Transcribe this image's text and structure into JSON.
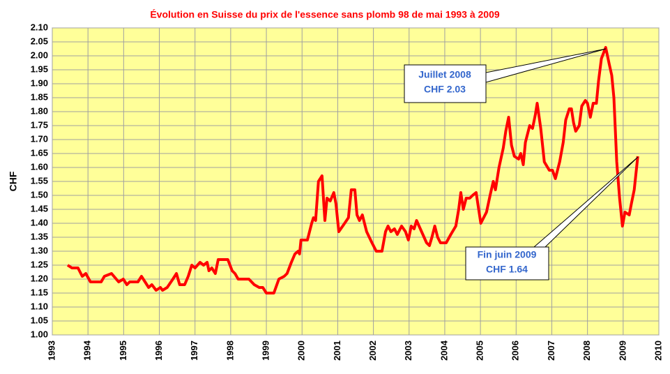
{
  "chart_data": {
    "type": "line",
    "title": "Évolution en Suisse du prix de l'essence sans plomb 98 de mai 1993 à 2009",
    "y_label": "CHF",
    "color": "#ff0000",
    "grid": true,
    "xlim": [
      1993,
      2010
    ],
    "xticks": [
      1993,
      1994,
      1995,
      1996,
      1997,
      1998,
      1999,
      2000,
      2001,
      2002,
      2003,
      2004,
      2005,
      2006,
      2007,
      2008,
      2009,
      2010
    ],
    "ylim": [
      1.0,
      2.1
    ],
    "yticks": [
      {
        "value": 1.0,
        "label": "1.00"
      },
      {
        "value": 1.05,
        "label": "1.05"
      },
      {
        "value": 1.1,
        "label": "1.10"
      },
      {
        "value": 1.15,
        "label": "1.15"
      },
      {
        "value": 1.2,
        "label": "1.20"
      },
      {
        "value": 1.25,
        "label": "1.25"
      },
      {
        "value": 1.3,
        "label": "1.30"
      },
      {
        "value": 1.35,
        "label": "1.35"
      },
      {
        "value": 1.4,
        "label": "1.40"
      },
      {
        "value": 1.45,
        "label": "1.45"
      },
      {
        "value": 1.5,
        "label": "1.50"
      },
      {
        "value": 1.55,
        "label": "1.55"
      },
      {
        "value": 1.6,
        "label": "1.60"
      },
      {
        "value": 1.65,
        "label": "1.65"
      },
      {
        "value": 1.7,
        "label": "1.70"
      },
      {
        "value": 1.75,
        "label": "1.75"
      },
      {
        "value": 1.8,
        "label": "1.80"
      },
      {
        "value": 1.85,
        "label": "1.85"
      },
      {
        "value": 1.9,
        "label": "1.90"
      },
      {
        "value": 1.95,
        "label": "1.95"
      },
      {
        "value": 2.0,
        "label": "2.00"
      },
      {
        "value": 2.05,
        "label": "2.05"
      },
      {
        "value": 2.1,
        "label": "2.10"
      }
    ],
    "x": [
      1993.43,
      1993.55,
      1993.72,
      1993.84,
      1993.94,
      1994.07,
      1994.37,
      1994.46,
      1994.66,
      1994.86,
      1994.99,
      1995.09,
      1995.17,
      1995.4,
      1995.5,
      1995.7,
      1995.79,
      1995.91,
      1996.03,
      1996.09,
      1996.22,
      1996.38,
      1996.48,
      1996.57,
      1996.71,
      1996.81,
      1996.91,
      1997.0,
      1997.14,
      1997.24,
      1997.34,
      1997.39,
      1997.47,
      1997.57,
      1997.65,
      1997.92,
      1998.04,
      1998.12,
      1998.21,
      1998.51,
      1998.66,
      1998.8,
      1998.9,
      1999.0,
      1999.21,
      1999.35,
      1999.5,
      1999.58,
      1999.7,
      1999.8,
      1999.89,
      1999.93,
      1999.97,
      2000.15,
      2000.27,
      2000.32,
      2000.38,
      2000.46,
      2000.56,
      2000.64,
      2000.7,
      2000.79,
      2000.89,
      2000.95,
      2001.03,
      2001.14,
      2001.3,
      2001.38,
      2001.48,
      2001.54,
      2001.61,
      2001.69,
      2001.81,
      2001.96,
      2002.08,
      2002.24,
      2002.34,
      2002.41,
      2002.49,
      2002.59,
      2002.67,
      2002.79,
      2002.9,
      2002.98,
      2003.06,
      2003.14,
      2003.21,
      2003.35,
      2003.49,
      2003.57,
      2003.64,
      2003.72,
      2003.8,
      2003.88,
      2004.04,
      2004.17,
      2004.31,
      2004.39,
      2004.45,
      2004.52,
      2004.6,
      2004.7,
      2004.78,
      2004.88,
      2004.95,
      2005.01,
      2005.17,
      2005.27,
      2005.36,
      2005.42,
      2005.52,
      2005.64,
      2005.71,
      2005.79,
      2005.87,
      2005.95,
      2006.07,
      2006.13,
      2006.2,
      2006.26,
      2006.38,
      2006.46,
      2006.54,
      2006.59,
      2006.69,
      2006.79,
      2006.93,
      2007.02,
      2007.1,
      2007.22,
      2007.32,
      2007.39,
      2007.49,
      2007.55,
      2007.61,
      2007.67,
      2007.77,
      2007.84,
      2007.94,
      2008.0,
      2008.08,
      2008.16,
      2008.25,
      2008.31,
      2008.39,
      2008.51,
      2008.61,
      2008.68,
      2008.74,
      2008.82,
      2008.9,
      2008.98,
      2009.05,
      2009.17,
      2009.23,
      2009.31,
      2009.41
    ],
    "values": [
      1.25,
      1.24,
      1.24,
      1.21,
      1.22,
      1.19,
      1.19,
      1.21,
      1.22,
      1.19,
      1.2,
      1.18,
      1.19,
      1.19,
      1.21,
      1.17,
      1.18,
      1.16,
      1.17,
      1.16,
      1.17,
      1.2,
      1.22,
      1.18,
      1.18,
      1.21,
      1.25,
      1.24,
      1.26,
      1.25,
      1.26,
      1.23,
      1.24,
      1.22,
      1.27,
      1.27,
      1.23,
      1.22,
      1.2,
      1.2,
      1.18,
      1.17,
      1.17,
      1.15,
      1.15,
      1.2,
      1.21,
      1.22,
      1.26,
      1.29,
      1.3,
      1.29,
      1.34,
      1.34,
      1.4,
      1.42,
      1.41,
      1.55,
      1.57,
      1.41,
      1.49,
      1.48,
      1.51,
      1.47,
      1.37,
      1.39,
      1.42,
      1.52,
      1.52,
      1.43,
      1.41,
      1.43,
      1.37,
      1.33,
      1.3,
      1.3,
      1.37,
      1.39,
      1.37,
      1.38,
      1.36,
      1.39,
      1.37,
      1.34,
      1.39,
      1.38,
      1.41,
      1.37,
      1.33,
      1.32,
      1.35,
      1.39,
      1.35,
      1.33,
      1.33,
      1.36,
      1.39,
      1.45,
      1.51,
      1.45,
      1.49,
      1.49,
      1.5,
      1.51,
      1.45,
      1.4,
      1.44,
      1.5,
      1.55,
      1.52,
      1.6,
      1.67,
      1.73,
      1.78,
      1.68,
      1.64,
      1.63,
      1.65,
      1.61,
      1.69,
      1.75,
      1.74,
      1.79,
      1.83,
      1.74,
      1.62,
      1.59,
      1.59,
      1.56,
      1.62,
      1.69,
      1.77,
      1.81,
      1.81,
      1.76,
      1.73,
      1.75,
      1.82,
      1.84,
      1.83,
      1.78,
      1.83,
      1.83,
      1.91,
      1.99,
      2.03,
      1.97,
      1.93,
      1.85,
      1.62,
      1.49,
      1.39,
      1.44,
      1.43,
      1.47,
      1.52,
      1.64
    ],
    "annotations": [
      [
        "Juillet 2008",
        "CHF 2.03"
      ],
      [
        "Fin juin 2009",
        "CHF 1.64"
      ]
    ]
  }
}
